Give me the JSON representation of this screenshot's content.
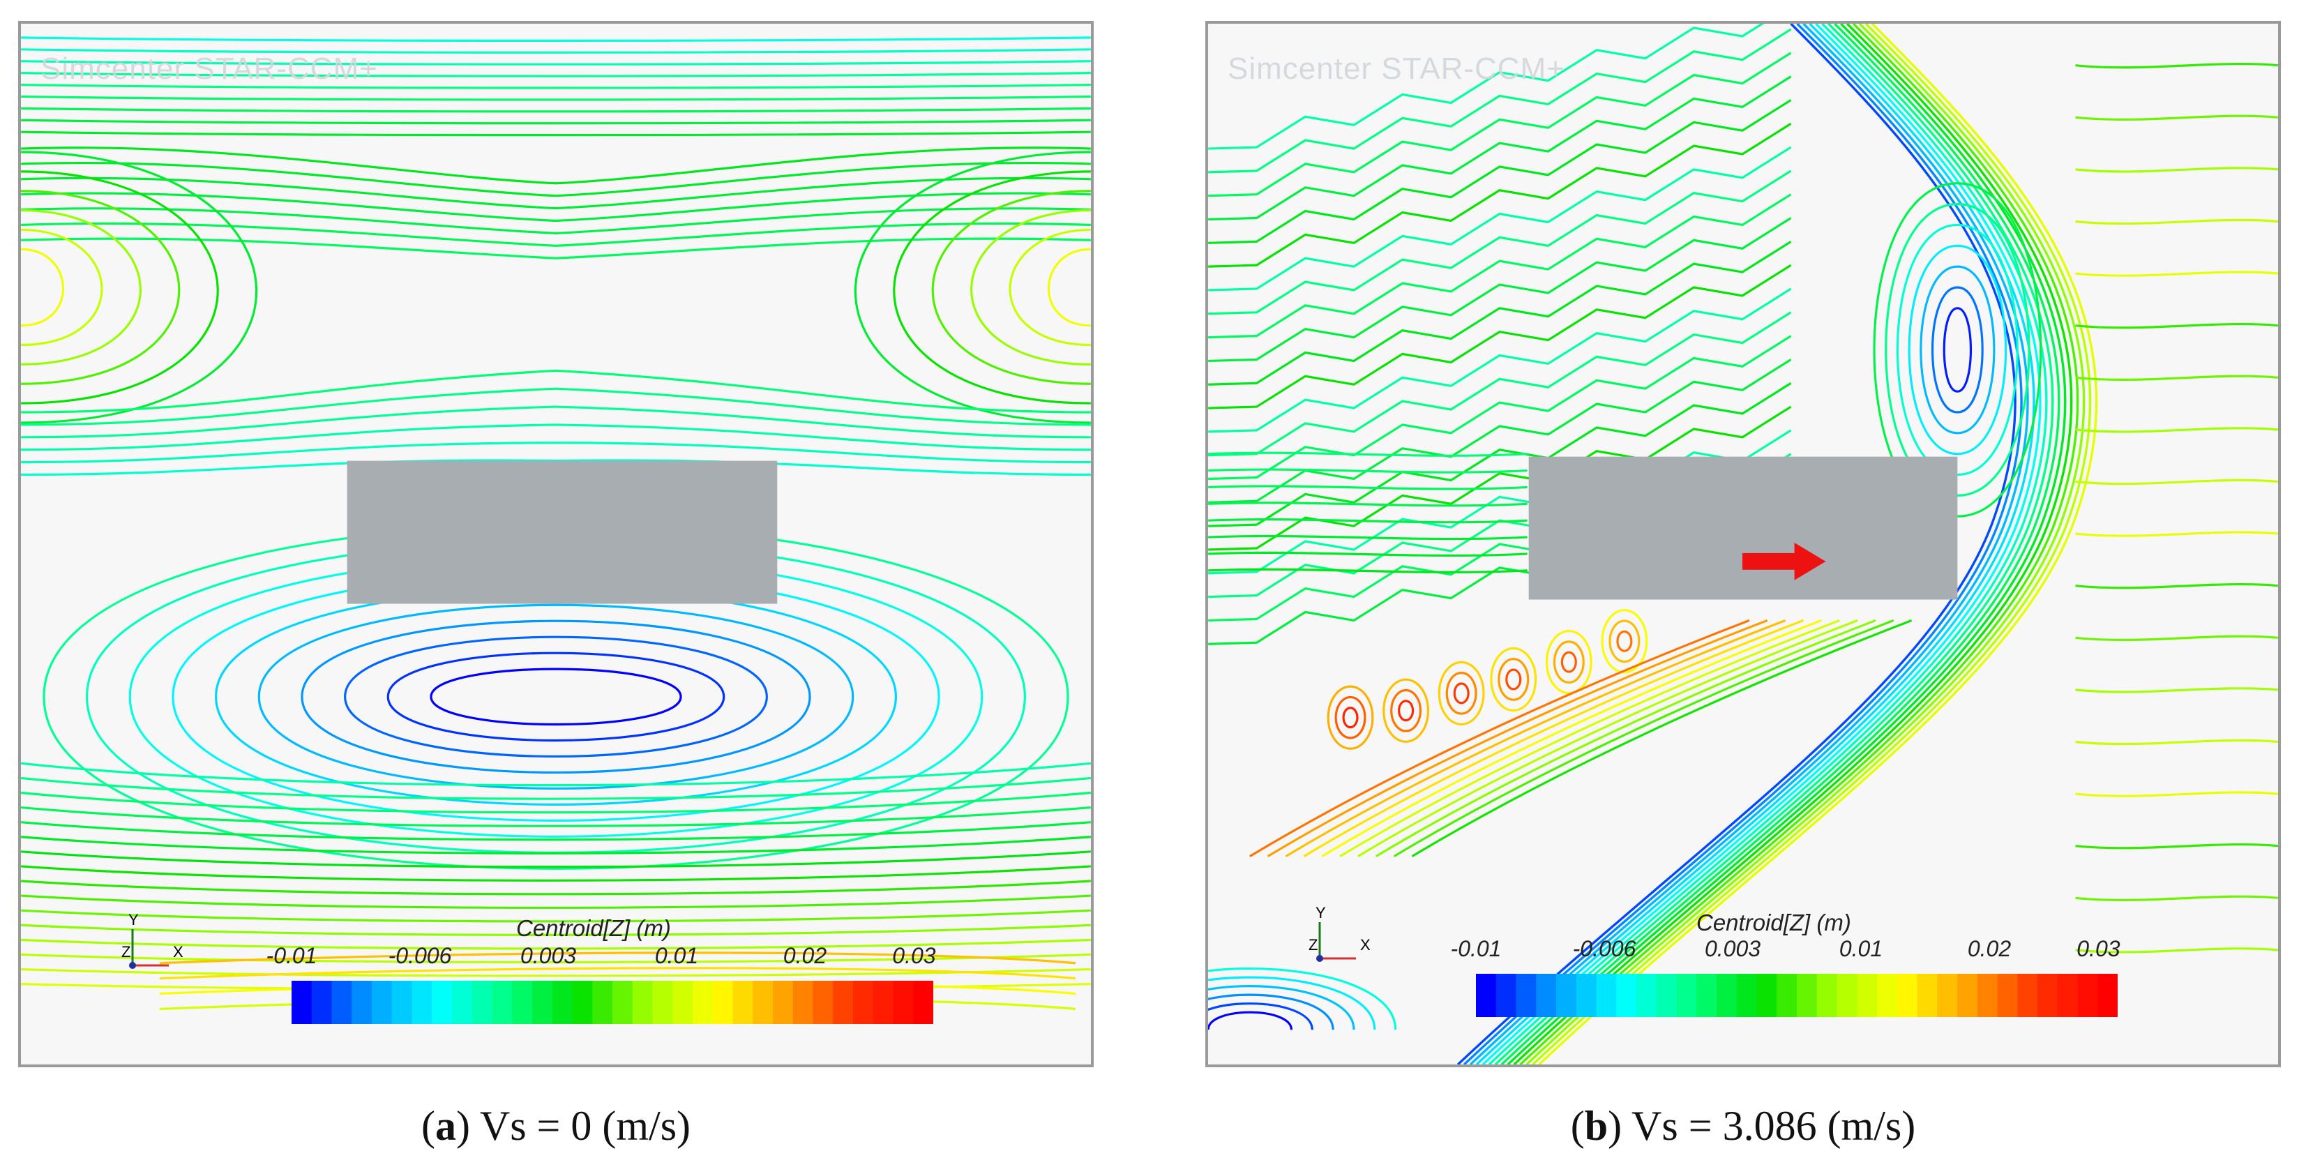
{
  "panels": [
    {
      "id": "a",
      "watermark": "Simcenter STAR-CCM+",
      "colorbar": {
        "title": "Centroid[Z] (m)",
        "ticks": [
          "-0.01",
          "-0.006",
          "0.003",
          "0.01",
          "0.02",
          "0.03"
        ],
        "colors": [
          "#0000ff",
          "#00a0ff",
          "#00ffff",
          "#00ff80",
          "#00e000",
          "#a0ff00",
          "#ffff00",
          "#ffa000",
          "#ff3000",
          "#ff0000"
        ]
      },
      "axes": {
        "y": "Y",
        "z": "Z",
        "x": "X"
      },
      "caption": {
        "letter": "a",
        "text": "Vs  = 0 (m/s)"
      },
      "has_arrow": false
    },
    {
      "id": "b",
      "watermark": "Simcenter STAR-CCM+",
      "colorbar": {
        "title": "Centroid[Z] (m)",
        "ticks": [
          "-0.01",
          "-0.006",
          "0.003",
          "0.01",
          "0.02",
          "0.03"
        ],
        "colors": [
          "#0000ff",
          "#00a0ff",
          "#00ffff",
          "#00ff80",
          "#00e000",
          "#a0ff00",
          "#ffff00",
          "#ffa000",
          "#ff3000",
          "#ff0000"
        ]
      },
      "axes": {
        "y": "Y",
        "z": "Z",
        "x": "X"
      },
      "caption": {
        "letter": "b",
        "text": "Vs = 3.086 (m/s)"
      },
      "has_arrow": true,
      "arrow_color": "#ee1111"
    }
  ],
  "body_color": "#a7adb1"
}
